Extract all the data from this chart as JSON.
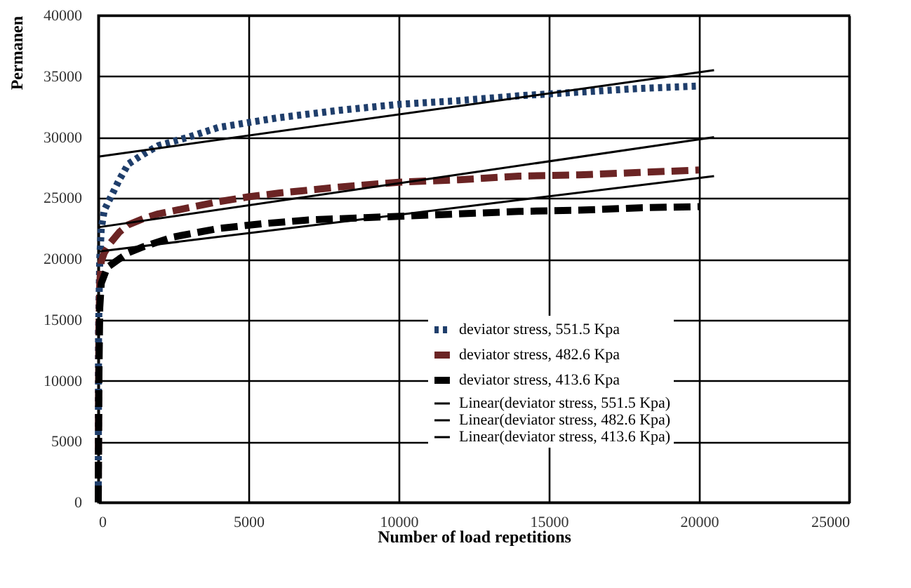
{
  "chart_data": {
    "type": "line",
    "xlabel": "Number of load repetitions",
    "ylabel": "Permanen",
    "xlim": [
      0,
      25000
    ],
    "xticks": [
      0,
      5000,
      10000,
      15000,
      20000,
      25000
    ],
    "ylim": [
      0,
      40000
    ],
    "yticks": [
      0,
      5000,
      10000,
      15000,
      20000,
      25000,
      30000,
      35000,
      40000
    ],
    "grid": true,
    "legend": "bottom right",
    "series": [
      {
        "name": "deviator stress, 551.5 Kpa",
        "color": "#1f3e6b",
        "line_style": "dotted",
        "x": [
          0,
          10,
          50,
          100,
          200,
          400,
          700,
          1000,
          1500,
          2000,
          3000,
          4000,
          5000,
          6000,
          8000,
          10000,
          12000,
          14000,
          16000,
          18000,
          20000
        ],
        "values": [
          0,
          14000,
          20000,
          22500,
          24000,
          25000,
          26500,
          27800,
          28600,
          29300,
          30000,
          30800,
          31200,
          31600,
          32200,
          32700,
          33000,
          33400,
          33700,
          34000,
          34200
        ]
      },
      {
        "name": "deviator stress, 482.6 Kpa",
        "color": "#6b2424",
        "line_style": "dashed",
        "x": [
          0,
          10,
          20,
          50,
          100,
          200,
          400,
          700,
          1000,
          1500,
          2000,
          3000,
          4000,
          5000,
          6000,
          8000,
          10000,
          12000,
          14000,
          16000,
          18000,
          20000
        ],
        "values": [
          0,
          8000,
          14000,
          18000,
          19800,
          20500,
          21300,
          22200,
          22800,
          23300,
          23700,
          24200,
          24700,
          25100,
          25400,
          25900,
          26300,
          26500,
          26800,
          26900,
          27100,
          27300
        ]
      },
      {
        "name": "deviator stress, 413.6 Kpa",
        "color": "#000000",
        "line_style": "dashed",
        "x": [
          0,
          20,
          50,
          100,
          300,
          700,
          1000,
          1500,
          2500,
          4000,
          5500,
          7000,
          9000,
          11000,
          14000,
          16000,
          18000,
          20000
        ],
        "values": [
          0,
          10000,
          16000,
          18000,
          19300,
          20000,
          20500,
          21000,
          21800,
          22500,
          22900,
          23200,
          23400,
          23600,
          23900,
          24000,
          24200,
          24300
        ]
      },
      {
        "name": "Linear(deviator stress, 551.5 Kpa)",
        "color": "#000000",
        "line_style": "solid",
        "x": [
          0,
          20500
        ],
        "values": [
          28400,
          35500
        ]
      },
      {
        "name": "Linear(deviator stress, 482.6 Kpa)",
        "color": "#000000",
        "line_style": "solid",
        "x": [
          0,
          20500
        ],
        "values": [
          22600,
          30000
        ]
      },
      {
        "name": "Linear(deviator stress, 413.6 Kpa)",
        "color": "#000000",
        "line_style": "solid",
        "x": [
          0,
          20500
        ],
        "values": [
          20600,
          26800
        ]
      }
    ]
  }
}
